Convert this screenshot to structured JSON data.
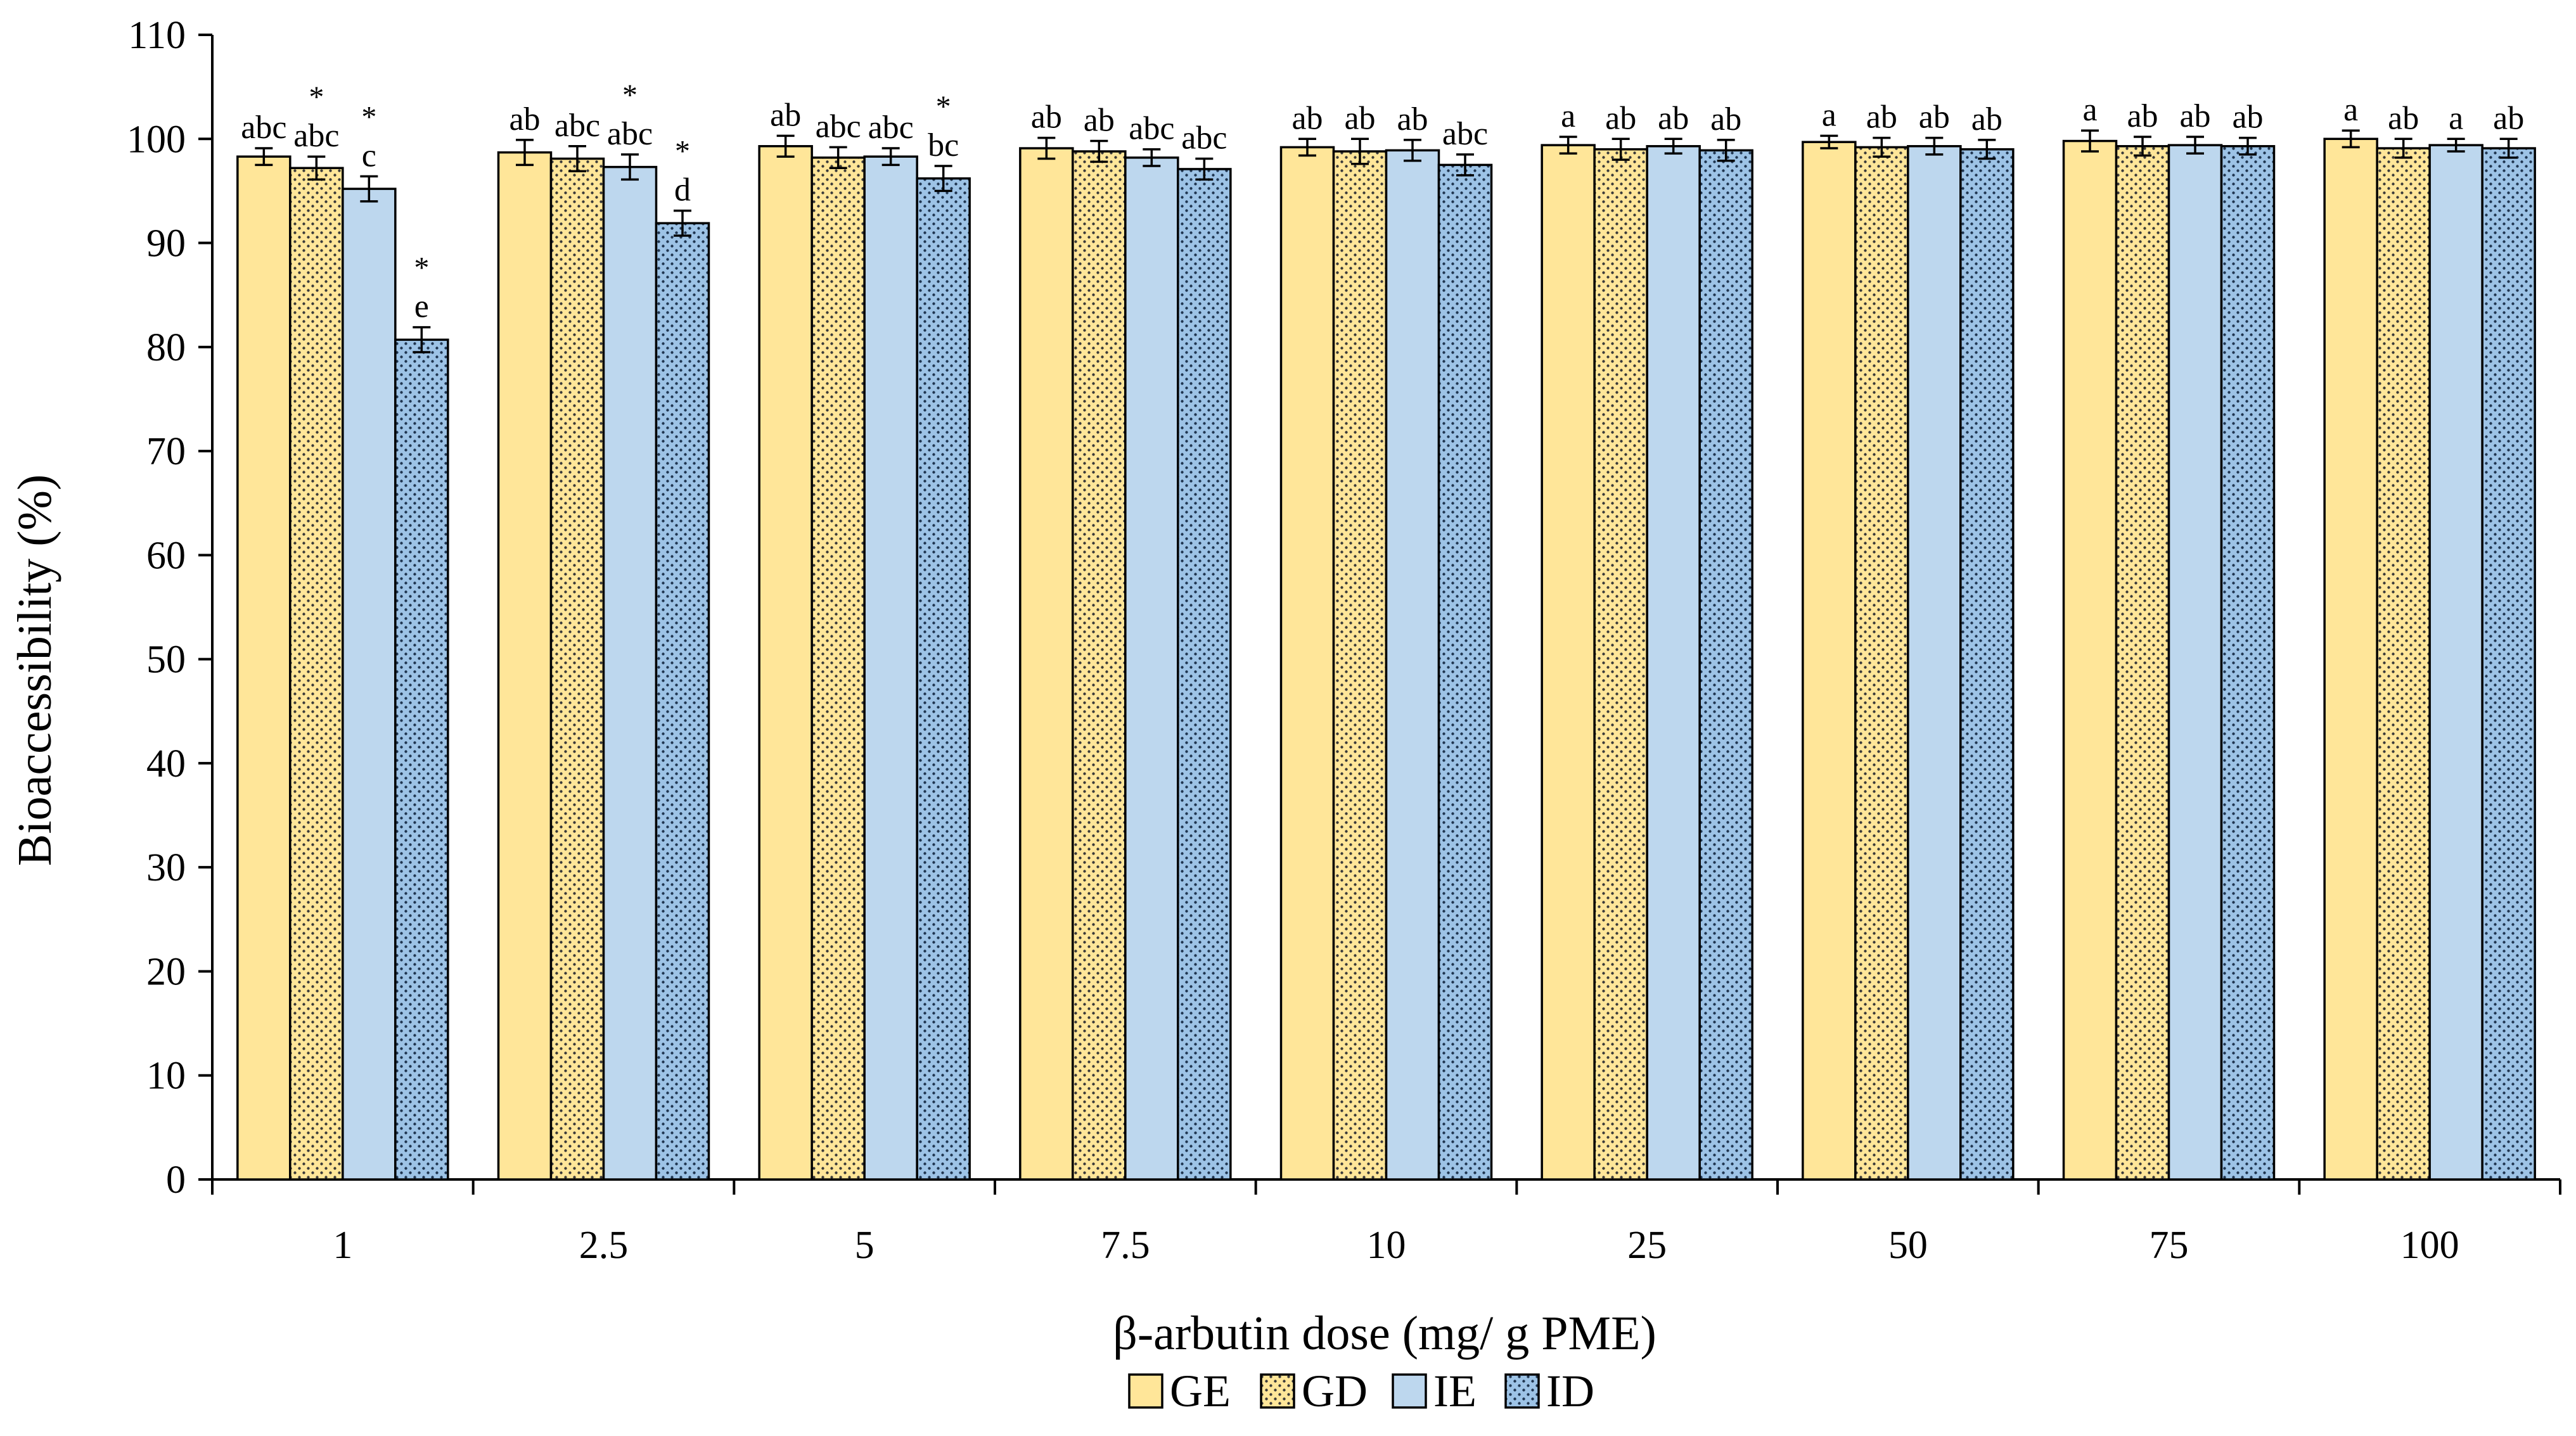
{
  "chart_data": {
    "type": "bar",
    "title": "",
    "xlabel": "β-arbutin dose (mg/ g PME)",
    "ylabel": "Bioaccessibility (%)",
    "ylim": [
      0,
      110
    ],
    "yticks": [
      0,
      10,
      20,
      30,
      40,
      50,
      60,
      70,
      80,
      90,
      100,
      110
    ],
    "grid": false,
    "legend_position": "bottom",
    "categories": [
      "1",
      "2.5",
      "5",
      "7.5",
      "10",
      "25",
      "50",
      "75",
      "100"
    ],
    "series": [
      {
        "name": "GE",
        "fill": "#FFE699",
        "pattern": "solid",
        "values": [
          98.3,
          98.7,
          99.3,
          99.1,
          99.2,
          99.4,
          99.7,
          99.8,
          100.0
        ],
        "errors": [
          0.8,
          1.2,
          1.0,
          1.0,
          0.8,
          0.8,
          0.6,
          1.0,
          0.8
        ],
        "labels": [
          "abc",
          "ab",
          "ab",
          "ab",
          "ab",
          "a",
          "a",
          "a",
          "a"
        ],
        "stars": [
          false,
          false,
          false,
          false,
          false,
          false,
          false,
          false,
          false
        ]
      },
      {
        "name": "GD",
        "fill": "#FFE699",
        "pattern": "dots",
        "values": [
          97.2,
          98.1,
          98.2,
          98.8,
          98.8,
          99.0,
          99.2,
          99.3,
          99.1
        ],
        "errors": [
          1.1,
          1.2,
          1.0,
          1.0,
          1.2,
          1.0,
          0.9,
          0.9,
          0.9
        ],
        "labels": [
          "abc",
          "abc",
          "abc",
          "ab",
          "ab",
          "ab",
          "ab",
          "ab",
          "ab"
        ],
        "stars": [
          true,
          false,
          false,
          false,
          false,
          false,
          false,
          false,
          false
        ]
      },
      {
        "name": "IE",
        "fill": "#BDD7EE",
        "pattern": "solid",
        "values": [
          95.2,
          97.3,
          98.3,
          98.2,
          98.9,
          99.3,
          99.3,
          99.4,
          99.4
        ],
        "errors": [
          1.2,
          1.2,
          0.8,
          0.8,
          1.0,
          0.7,
          0.8,
          0.8,
          0.6
        ],
        "labels": [
          "c",
          "abc",
          "abc",
          "abc",
          "ab",
          "ab",
          "ab",
          "ab",
          "a"
        ],
        "stars": [
          true,
          true,
          false,
          false,
          false,
          false,
          false,
          false,
          false
        ]
      },
      {
        "name": "ID",
        "fill": "#9DC3E6",
        "pattern": "dots",
        "values": [
          80.7,
          91.9,
          96.2,
          97.1,
          97.5,
          98.9,
          99.0,
          99.3,
          99.1
        ],
        "errors": [
          1.2,
          1.2,
          1.2,
          1.0,
          1.0,
          1.0,
          0.9,
          0.8,
          0.9
        ],
        "labels": [
          "e",
          "d",
          "bc",
          "abc",
          "abc",
          "ab",
          "ab",
          "ab",
          "ab"
        ],
        "stars": [
          true,
          true,
          true,
          false,
          false,
          false,
          false,
          false,
          false
        ]
      }
    ],
    "significance_marker": "*"
  }
}
